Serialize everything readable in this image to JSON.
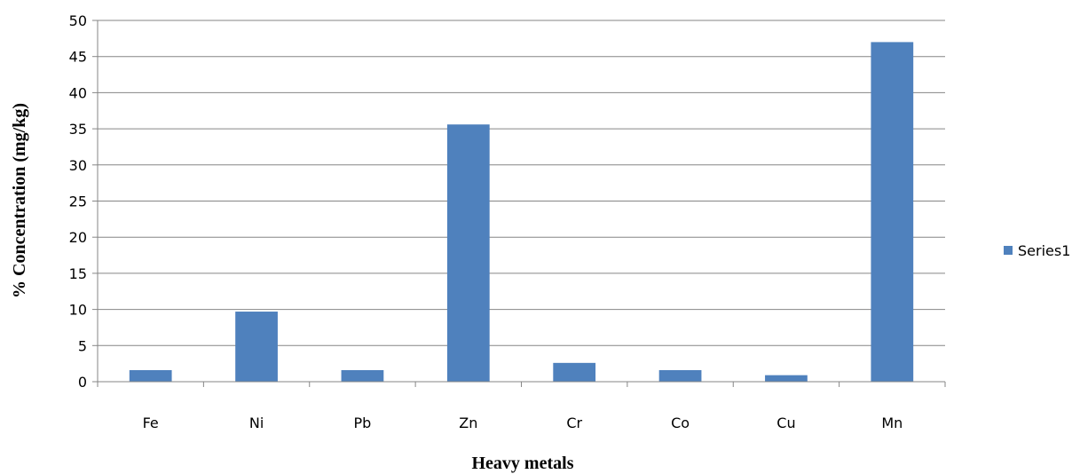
{
  "chart_data": {
    "type": "bar",
    "title": "",
    "xlabel": "Heavy metals",
    "ylabel": "% Concentration (mg/kg)",
    "categories": [
      "Fe",
      "Ni",
      "Pb",
      "Zn",
      "Cr",
      "Co",
      "Cu",
      "Mn"
    ],
    "series": [
      {
        "name": "Series1",
        "values": [
          1.6,
          9.7,
          1.6,
          35.6,
          2.6,
          1.6,
          0.9,
          47.0
        ]
      }
    ],
    "ylim": [
      0,
      50
    ],
    "yticks": [
      0,
      5,
      10,
      15,
      20,
      25,
      30,
      35,
      40,
      45,
      50
    ],
    "grid": true,
    "legend_position": "right",
    "colors": {
      "bar": "#4f81bd",
      "grid": "#868686",
      "axis": "#868686"
    }
  }
}
